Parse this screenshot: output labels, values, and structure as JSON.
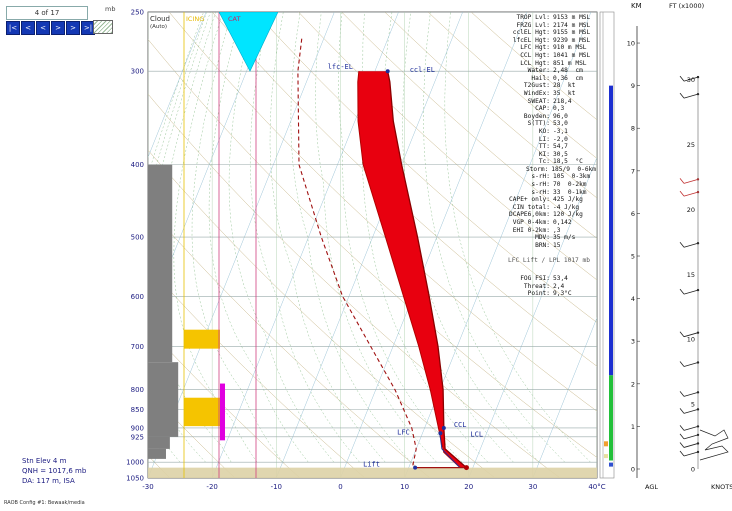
{
  "nav": {
    "frame_counter": "4 of 17",
    "buttons": [
      "|<",
      "<",
      "<",
      ">",
      ">",
      ">|"
    ],
    "unit": "mb"
  },
  "labels": {
    "cloud": "Cloud",
    "cloud_sub": "(Auto)",
    "icing": "ICING",
    "cat": "CAT",
    "lfc_el": "lfc-EL",
    "ccl_el": "ccl-EL",
    "lfc": "LFC",
    "ccl": "CCL",
    "lcl": "LCL",
    "lift": "Lift"
  },
  "station": {
    "elev": "Stn Elev  4 m",
    "qnh": "QNH = 1017,6 mb",
    "da": "DA: 117 m, ISA"
  },
  "footer": "RAOB Config #1: Bewaak/media",
  "indices": [
    [
      "TROP Lvl:",
      "9153 m MSL"
    ],
    [
      "FRZG Lvl:",
      "2174 m MSL"
    ],
    [
      "cclEL Hgt:",
      "9155 m MSL"
    ],
    [
      "lfcEL Hgt:",
      "9239 m MSL"
    ],
    [
      "LFC Hgt:",
      "910 m MSL"
    ],
    [
      "CCL Hgt:",
      "1041 m MSL"
    ],
    [
      "LCL Hgt:",
      "851 m MSL"
    ],
    [
      "Water:",
      "2,48  cm"
    ],
    [
      "Hail:",
      "0,36  cm"
    ],
    [
      "T2Gust:",
      "28  kt"
    ],
    [
      "WindEx:",
      "35  kt"
    ],
    [
      "SWEAT:",
      "218,4"
    ],
    [
      "CAP:",
      "0,3"
    ],
    [
      "Boyden:",
      "96,0"
    ],
    [
      "S(TT):",
      "53,0"
    ],
    [
      "KO:",
      "-3,1"
    ],
    [
      "LI:",
      "-2,0"
    ],
    [
      "TT:",
      "54,7"
    ],
    [
      "KI:",
      "30,5"
    ],
    [
      "Tc:",
      "18,5  °C"
    ],
    [
      "",
      ""
    ],
    [
      "Storm:",
      "185/9  0-6km"
    ],
    [
      "s-rH:",
      "105  0-3km"
    ],
    [
      "s-rH:",
      "70  0-2km"
    ],
    [
      "s-rH:",
      "33  0-1km"
    ],
    [
      "",
      ""
    ],
    [
      "CAPE+ only:",
      "425 J/kg"
    ],
    [
      "CIN total:",
      "-4 J/kg"
    ],
    [
      "DCAPE6,0km:",
      "120 J/kg"
    ],
    [
      "VGP 0-4km:",
      "0,142"
    ],
    [
      "EHI 0-2km:",
      ",3"
    ],
    [
      "MDV:",
      "35 m/s"
    ],
    [
      "BRN:",
      "15"
    ]
  ],
  "lfc_note": "LFC Lift / LPL 1017 mb",
  "fog": [
    [
      "FOG FSI:",
      "53,4"
    ],
    [
      "Threat:",
      "2,4"
    ],
    [
      "Point:",
      "9,3°C"
    ]
  ],
  "height_axis": {
    "km_title": "KM",
    "ft_title": "FT (x1000)",
    "km_ticks": [
      "10",
      "9",
      "8",
      "7",
      "6",
      "5",
      "4",
      "3",
      "2",
      "1",
      "0"
    ],
    "ft_ticks": [
      "30",
      "25",
      "20",
      "15",
      "10",
      "5",
      "0"
    ],
    "agl": "AGL",
    "knots": "KNOTS"
  },
  "colors": {
    "cape_fill": "#e8000f",
    "temp_profile": "#8b0000",
    "cat_fill": "#00e5ff",
    "grey_cloud": "#7f7f7f",
    "icing_yellow": "#f5c400",
    "icing_magenta": "#e000e0",
    "blue_bar": "#1c2fd0",
    "green_bar": "#22c03a"
  },
  "chart_data": {
    "type": "skew-t",
    "x": {
      "label": "°C",
      "range": [
        -30,
        40
      ],
      "ticks": [
        -30,
        -20,
        -10,
        0,
        10,
        20,
        30,
        40
      ]
    },
    "y": {
      "label": "mb",
      "log_scale": true,
      "range": [
        1050,
        250
      ],
      "ticks": [
        250,
        300,
        400,
        500,
        600,
        700,
        800,
        850,
        900,
        925,
        1000,
        1050
      ]
    },
    "lifted_parcel": [
      {
        "p": 1017,
        "t": 19.0
      },
      {
        "p": 960,
        "t": 14.5
      },
      {
        "p": 900,
        "t": 13.0
      },
      {
        "p": 800,
        "t": 10.5
      },
      {
        "p": 700,
        "t": 7.0
      },
      {
        "p": 600,
        "t": 2.5
      },
      {
        "p": 500,
        "t": -3.0
      },
      {
        "p": 400,
        "t": -10.0
      },
      {
        "p": 350,
        "t": -14.0
      },
      {
        "p": 310,
        "t": -17.0
      },
      {
        "p": 300,
        "t": -18.0
      }
    ],
    "environment_temp": [
      {
        "p": 1017,
        "t": 18.0
      },
      {
        "p": 970,
        "t": 14.5
      },
      {
        "p": 910,
        "t": 12.5
      },
      {
        "p": 800,
        "t": 8.5
      },
      {
        "p": 700,
        "t": 4.0
      },
      {
        "p": 600,
        "t": -1.5
      },
      {
        "p": 500,
        "t": -8.0
      },
      {
        "p": 400,
        "t": -16.0
      },
      {
        "p": 350,
        "t": -19.5
      },
      {
        "p": 310,
        "t": -22.0
      },
      {
        "p": 300,
        "t": -22.5
      }
    ],
    "dewpoint_dashed": [
      {
        "p": 1010,
        "t": 10.5
      },
      {
        "p": 960,
        "t": 10.0
      },
      {
        "p": 900,
        "t": 8.0
      },
      {
        "p": 800,
        "t": 3.0
      },
      {
        "p": 700,
        "t": -3.5
      },
      {
        "p": 600,
        "t": -11.0
      },
      {
        "p": 500,
        "t": -18.0
      },
      {
        "p": 400,
        "t": -26.0
      },
      {
        "p": 300,
        "t": -32.0
      },
      {
        "p": 270,
        "t": -33.5
      }
    ],
    "levels": {
      "lfc_el_p": 300,
      "ccl_p": 900,
      "lcl_p": 915,
      "lfc_p": 910,
      "lift_p": 1017
    },
    "cloud_cover": [
      {
        "p_top": 400,
        "p_bot": 735,
        "cover": 0.47
      },
      {
        "p_top": 735,
        "p_bot": 925,
        "cover": 0.7
      },
      {
        "p_top": 925,
        "p_bot": 960,
        "cover": 0.38
      },
      {
        "p_top": 960,
        "p_bot": 990,
        "cover": 0.23
      }
    ],
    "icing_blocks": [
      {
        "p_top": 665,
        "p_bot": 705
      },
      {
        "p_top": 820,
        "p_bot": 895
      }
    ],
    "cat_band": {
      "p_top": 250,
      "p_bot": 300
    },
    "height_bars": {
      "blue_km": [
        2.2,
        9.0
      ],
      "green_km": [
        0.2,
        2.2
      ]
    }
  }
}
